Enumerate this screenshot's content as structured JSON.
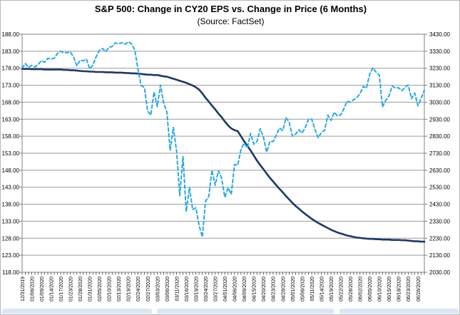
{
  "title": "S&P 500: Change in CY20 EPS vs. Change in Price (6 Months)",
  "subtitle": "(Source: FactSet)",
  "colors": {
    "eps_line": "#1f3864",
    "price_line": "#29a8e0",
    "gridline": "#9a9a9a",
    "plot_border": "#808080",
    "tick": "#555555",
    "axis_text": "#000000",
    "bottom_strip": "#d9e6f6"
  },
  "chart_data": {
    "type": "line",
    "title": "S&P 500: Change in CY20 EPS vs. Change in Price (6 Months)",
    "subtitle": "(Source: FactSet)",
    "grid": true,
    "legend": "none",
    "left_axis": {
      "min": 118,
      "max": 188,
      "step": 5,
      "tick_labels": [
        "188.00",
        "183.00",
        "178.00",
        "173.00",
        "168.00",
        "163.00",
        "158.00",
        "153.00",
        "148.00",
        "143.00",
        "138.00",
        "133.00",
        "128.00",
        "123.00",
        "118.00"
      ]
    },
    "right_axis": {
      "min": 2030,
      "max": 3430,
      "step": 100,
      "tick_labels": [
        "3430.00",
        "3330.00",
        "3230.00",
        "3130.00",
        "3030.00",
        "2930.00",
        "2830.00",
        "2730.00",
        "2630.00",
        "2530.00",
        "2430.00",
        "2330.00",
        "2230.00",
        "2130.00",
        "2030.00"
      ]
    },
    "x_tick_labels": [
      "12/31/2019",
      "01/06/2020",
      "01/09/2020",
      "01/14/2020",
      "01/17/2020",
      "01/23/2020",
      "01/28/2020",
      "01/31/2020",
      "02/05/2020",
      "02/10/2020",
      "02/13/2020",
      "02/19/2020",
      "02/24/2020",
      "02/27/2020",
      "03/03/2020",
      "03/06/2020",
      "03/11/2020",
      "03/16/2020",
      "03/19/2020",
      "03/24/2020",
      "03/27/2020",
      "04/01/2020",
      "04/06/2020",
      "04/09/2020",
      "04/15/2020",
      "04/20/2020",
      "04/23/2020",
      "04/28/2020",
      "05/01/2020",
      "05/06/2020",
      "05/11/2020",
      "05/14/2020",
      "05/19/2020",
      "05/22/2020",
      "05/28/2020",
      "06/02/2020",
      "06/05/2020",
      "06/10/2020",
      "06/15/2020",
      "06/18/2020",
      "06/23/2020",
      "06/26/2020"
    ],
    "label_every": 3,
    "n_points": 126,
    "series": [
      {
        "name": "CY20 EPS",
        "axis": "left",
        "style": "solid",
        "color": "#1f3864",
        "values": [
          177.8,
          177.8,
          177.8,
          177.7,
          177.7,
          177.7,
          177.7,
          177.6,
          177.6,
          177.6,
          177.6,
          177.6,
          177.6,
          177.5,
          177.5,
          177.4,
          177.4,
          177.3,
          177.2,
          177.1,
          177.1,
          177.0,
          177.0,
          176.9,
          176.9,
          176.9,
          176.8,
          176.8,
          176.8,
          176.7,
          176.7,
          176.7,
          176.6,
          176.6,
          176.5,
          176.5,
          176.4,
          176.3,
          176.2,
          176.1,
          176.1,
          176.0,
          176.0,
          175.8,
          175.6,
          175.5,
          175.2,
          174.9,
          174.6,
          174.3,
          174.0,
          173.7,
          173.3,
          172.9,
          172.4,
          171.7,
          170.6,
          169.3,
          168.2,
          167.0,
          165.9,
          164.7,
          163.6,
          162.3,
          161.2,
          160.3,
          159.8,
          159.5,
          158.0,
          156.5,
          155.2,
          153.8,
          152.3,
          150.8,
          149.5,
          148.3,
          147.0,
          145.8,
          144.7,
          143.6,
          142.5,
          141.5,
          140.4,
          139.4,
          138.4,
          137.5,
          136.7,
          135.9,
          135.1,
          134.4,
          133.7,
          133.1,
          132.5,
          132.0,
          131.5,
          131.0,
          130.5,
          130.1,
          129.7,
          129.4,
          129.1,
          128.8,
          128.6,
          128.4,
          128.2,
          128.1,
          128.0,
          127.9,
          127.8,
          127.8,
          127.7,
          127.7,
          127.6,
          127.6,
          127.6,
          127.5,
          127.5,
          127.5,
          127.4,
          127.4,
          127.3,
          127.2,
          127.1,
          127.1,
          127.0,
          127.0
        ]
      },
      {
        "name": "Price",
        "axis": "right",
        "style": "dashed",
        "color": "#29a8e0",
        "values": [
          3230.78,
          3257.85,
          3234.85,
          3246.28,
          3237.18,
          3253.05,
          3274.7,
          3265.35,
          3288.13,
          3283.15,
          3289.29,
          3316.81,
          3329.62,
          3320.79,
          3321.75,
          3325.54,
          3295.47,
          3243.63,
          3276.24,
          3273.4,
          3283.66,
          3225.52,
          3248.92,
          3297.59,
          3334.69,
          3345.78,
          3327.71,
          3352.09,
          3357.75,
          3379.45,
          3373.94,
          3380.16,
          3370.29,
          3386.15,
          3373.23,
          3337.75,
          3225.89,
          3128.21,
          3116.39,
          2978.76,
          2954.22,
          3090.23,
          3003.37,
          3130.12,
          3023.94,
          2972.37,
          2746.56,
          2882.23,
          2741.38,
          2480.64,
          2711.02,
          2386.13,
          2529.19,
          2398.1,
          2409.39,
          2304.92,
          2237.4,
          2447.33,
          2475.56,
          2630.07,
          2541.47,
          2626.65,
          2584.59,
          2470.5,
          2526.9,
          2488.65,
          2663.68,
          2659.41,
          2749.98,
          2789.82,
          2761.63,
          2846.06,
          2783.36,
          2799.55,
          2874.56,
          2823.16,
          2736.56,
          2799.31,
          2797.8,
          2836.74,
          2878.48,
          2863.39,
          2939.51,
          2912.43,
          2830.71,
          2842.74,
          2868.44,
          2848.42,
          2881.19,
          2929.8,
          2930.32,
          2870.12,
          2820.0,
          2852.5,
          2863.7,
          2953.91,
          2922.94,
          2971.61,
          2948.51,
          2955.45,
          2991.77,
          3036.13,
          3029.73,
          3044.31,
          3055.73,
          3080.82,
          3122.87,
          3112.35,
          3193.93,
          3232.39,
          3207.18,
          3190.14,
          3002.1,
          3041.31,
          3066.59,
          3124.74,
          3113.49,
          3115.34,
          3097.74,
          3117.86,
          3131.29,
          3050.33,
          3083.76,
          3009.05,
          3053.24,
          3100.29
        ]
      }
    ]
  }
}
